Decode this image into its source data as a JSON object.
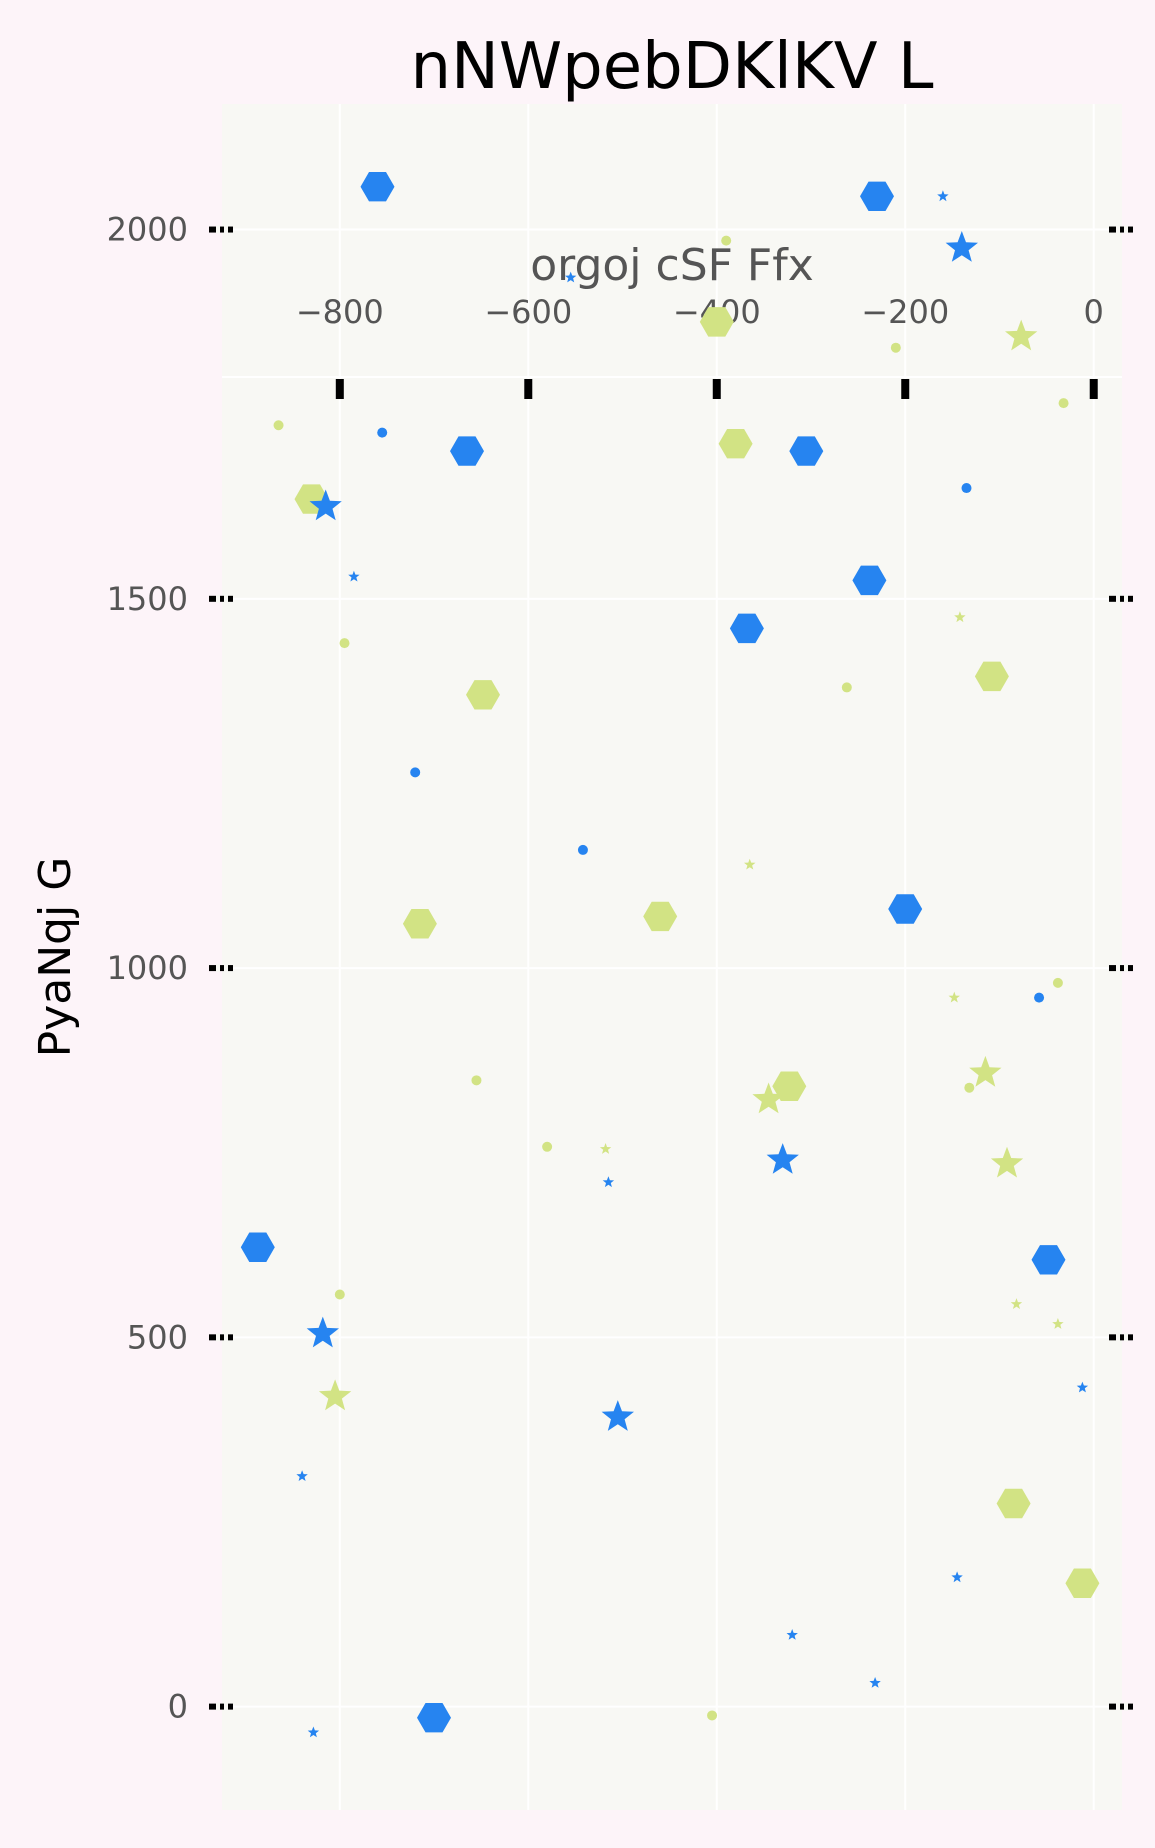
{
  "chart_data": {
    "type": "scatter",
    "title": "nNWpebDKlKV L",
    "xlabel": "orgoj cSF Ffx",
    "ylabel": "PyaNqj G",
    "xlim": [
      -925,
      30
    ],
    "ylim": [
      -140,
      2170
    ],
    "x_ticks": [
      -800,
      -600,
      -400,
      -200,
      0
    ],
    "x_tick_labels": [
      "−800",
      "−600",
      "−400",
      "−200",
      "0"
    ],
    "y_ticks": [
      0,
      500,
      1000,
      1500,
      2000
    ],
    "y_tick_labels": [
      "0",
      "500",
      "1000",
      "1500",
      "2000"
    ],
    "x_axis_position": "top",
    "grid": true,
    "colors": {
      "blue": "#2684f0",
      "green": "#d2e384",
      "plot_bg": "#f8f8f4",
      "page_bg": "#fdf4f9"
    },
    "points": [
      {
        "x": -760,
        "y": 2058,
        "marker": "hexagon",
        "color": "blue",
        "size": "large"
      },
      {
        "x": -230,
        "y": 2045,
        "marker": "hexagon",
        "color": "blue",
        "size": "large"
      },
      {
        "x": -160,
        "y": 2045,
        "marker": "star",
        "color": "blue",
        "size": "small"
      },
      {
        "x": -140,
        "y": 1975,
        "marker": "star",
        "color": "blue",
        "size": "large"
      },
      {
        "x": -390,
        "y": 1985,
        "marker": "circle",
        "color": "green",
        "size": "small"
      },
      {
        "x": -555,
        "y": 1935,
        "marker": "star",
        "color": "blue",
        "size": "small"
      },
      {
        "x": -400,
        "y": 1875,
        "marker": "hexagon",
        "color": "green",
        "size": "large"
      },
      {
        "x": -77,
        "y": 1855,
        "marker": "star",
        "color": "green",
        "size": "large"
      },
      {
        "x": -210,
        "y": 1840,
        "marker": "circle",
        "color": "green",
        "size": "small"
      },
      {
        "x": -32,
        "y": 1765,
        "marker": "circle",
        "color": "green",
        "size": "small"
      },
      {
        "x": -865,
        "y": 1735,
        "marker": "circle",
        "color": "green",
        "size": "small"
      },
      {
        "x": -755,
        "y": 1725,
        "marker": "circle",
        "color": "blue",
        "size": "small"
      },
      {
        "x": -380,
        "y": 1710,
        "marker": "hexagon",
        "color": "green",
        "size": "large"
      },
      {
        "x": -665,
        "y": 1700,
        "marker": "hexagon",
        "color": "blue",
        "size": "large"
      },
      {
        "x": -305,
        "y": 1700,
        "marker": "hexagon",
        "color": "blue",
        "size": "large"
      },
      {
        "x": -135,
        "y": 1650,
        "marker": "circle",
        "color": "blue",
        "size": "small"
      },
      {
        "x": -830,
        "y": 1635,
        "marker": "hexagon",
        "color": "green",
        "size": "large"
      },
      {
        "x": -815,
        "y": 1625,
        "marker": "star",
        "color": "blue",
        "size": "large"
      },
      {
        "x": -785,
        "y": 1530,
        "marker": "star",
        "color": "blue",
        "size": "small"
      },
      {
        "x": -238,
        "y": 1525,
        "marker": "hexagon",
        "color": "blue",
        "size": "large"
      },
      {
        "x": -142,
        "y": 1475,
        "marker": "star",
        "color": "green",
        "size": "small"
      },
      {
        "x": -368,
        "y": 1460,
        "marker": "hexagon",
        "color": "blue",
        "size": "large"
      },
      {
        "x": -795,
        "y": 1440,
        "marker": "circle",
        "color": "green",
        "size": "small"
      },
      {
        "x": -108,
        "y": 1395,
        "marker": "hexagon",
        "color": "green",
        "size": "large"
      },
      {
        "x": -262,
        "y": 1380,
        "marker": "circle",
        "color": "green",
        "size": "small"
      },
      {
        "x": -648,
        "y": 1370,
        "marker": "hexagon",
        "color": "green",
        "size": "large"
      },
      {
        "x": -720,
        "y": 1265,
        "marker": "circle",
        "color": "blue",
        "size": "small"
      },
      {
        "x": -542,
        "y": 1160,
        "marker": "circle",
        "color": "blue",
        "size": "small"
      },
      {
        "x": -365,
        "y": 1140,
        "marker": "star",
        "color": "green",
        "size": "small"
      },
      {
        "x": -200,
        "y": 1080,
        "marker": "hexagon",
        "color": "blue",
        "size": "large"
      },
      {
        "x": -460,
        "y": 1070,
        "marker": "hexagon",
        "color": "green",
        "size": "large"
      },
      {
        "x": -715,
        "y": 1060,
        "marker": "hexagon",
        "color": "green",
        "size": "large"
      },
      {
        "x": -38,
        "y": 980,
        "marker": "circle",
        "color": "green",
        "size": "small"
      },
      {
        "x": -148,
        "y": 960,
        "marker": "star",
        "color": "green",
        "size": "small"
      },
      {
        "x": -58,
        "y": 960,
        "marker": "circle",
        "color": "blue",
        "size": "small"
      },
      {
        "x": -115,
        "y": 858,
        "marker": "star",
        "color": "green",
        "size": "large"
      },
      {
        "x": -132,
        "y": 838,
        "marker": "circle",
        "color": "green",
        "size": "small"
      },
      {
        "x": -655,
        "y": 848,
        "marker": "circle",
        "color": "green",
        "size": "small"
      },
      {
        "x": -323,
        "y": 840,
        "marker": "hexagon",
        "color": "green",
        "size": "large"
      },
      {
        "x": -345,
        "y": 822,
        "marker": "star",
        "color": "green",
        "size": "large"
      },
      {
        "x": -580,
        "y": 758,
        "marker": "circle",
        "color": "green",
        "size": "small"
      },
      {
        "x": -518,
        "y": 755,
        "marker": "star",
        "color": "green",
        "size": "small"
      },
      {
        "x": -330,
        "y": 740,
        "marker": "star",
        "color": "blue",
        "size": "large"
      },
      {
        "x": -92,
        "y": 735,
        "marker": "star",
        "color": "green",
        "size": "large"
      },
      {
        "x": -515,
        "y": 710,
        "marker": "star",
        "color": "blue",
        "size": "small"
      },
      {
        "x": -887,
        "y": 622,
        "marker": "hexagon",
        "color": "blue",
        "size": "large"
      },
      {
        "x": -48,
        "y": 605,
        "marker": "hexagon",
        "color": "blue",
        "size": "large"
      },
      {
        "x": -800,
        "y": 558,
        "marker": "circle",
        "color": "green",
        "size": "small"
      },
      {
        "x": -82,
        "y": 545,
        "marker": "star",
        "color": "green",
        "size": "small"
      },
      {
        "x": -38,
        "y": 518,
        "marker": "star",
        "color": "green",
        "size": "small"
      },
      {
        "x": -818,
        "y": 505,
        "marker": "star",
        "color": "blue",
        "size": "large"
      },
      {
        "x": -12,
        "y": 432,
        "marker": "star",
        "color": "blue",
        "size": "small"
      },
      {
        "x": -805,
        "y": 420,
        "marker": "star",
        "color": "green",
        "size": "large"
      },
      {
        "x": -505,
        "y": 392,
        "marker": "star",
        "color": "blue",
        "size": "large"
      },
      {
        "x": -840,
        "y": 312,
        "marker": "star",
        "color": "blue",
        "size": "small"
      },
      {
        "x": -85,
        "y": 275,
        "marker": "hexagon",
        "color": "green",
        "size": "large"
      },
      {
        "x": -145,
        "y": 175,
        "marker": "star",
        "color": "blue",
        "size": "small"
      },
      {
        "x": -12,
        "y": 167,
        "marker": "hexagon",
        "color": "green",
        "size": "large"
      },
      {
        "x": -320,
        "y": 97,
        "marker": "star",
        "color": "blue",
        "size": "small"
      },
      {
        "x": -232,
        "y": 32,
        "marker": "star",
        "color": "blue",
        "size": "small"
      },
      {
        "x": -700,
        "y": -15,
        "marker": "hexagon",
        "color": "blue",
        "size": "large"
      },
      {
        "x": -405,
        "y": -12,
        "marker": "circle",
        "color": "green",
        "size": "small"
      },
      {
        "x": -828,
        "y": -35,
        "marker": "star",
        "color": "blue",
        "size": "small"
      }
    ]
  }
}
